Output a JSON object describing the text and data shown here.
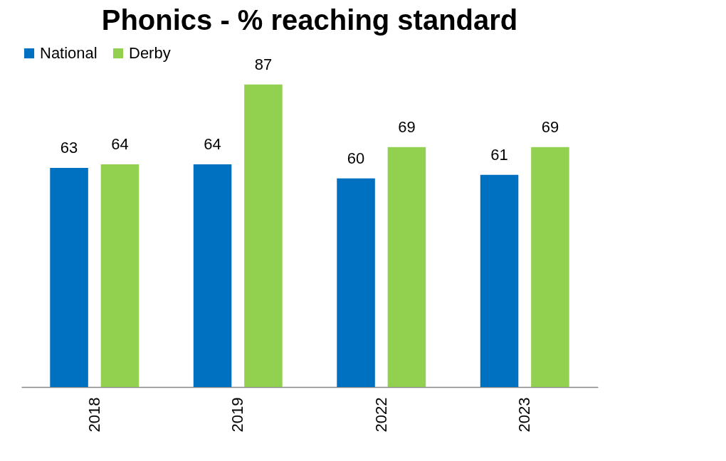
{
  "chart_data": {
    "type": "bar",
    "title": "Phonics - % reaching standard",
    "categories": [
      "2018",
      "2019",
      "2022",
      "2023"
    ],
    "series": [
      {
        "name": "National",
        "color": "#0070c0",
        "values": [
          63,
          64,
          60,
          61
        ]
      },
      {
        "name": "Derby",
        "color": "#92d050",
        "values": [
          64,
          87,
          69,
          69
        ]
      }
    ],
    "data_labels": true,
    "legend": "top",
    "grid": false,
    "tick_labels": "x"
  }
}
